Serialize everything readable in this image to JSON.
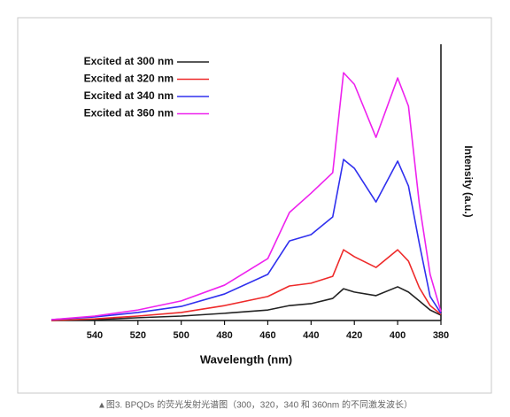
{
  "chart_data": {
    "type": "line",
    "caption": "▲图3. BPQDs 的荧光发射光谱图（300，320，340 和 360nm 的不同激发波长）",
    "x_label": "Wavelength (nm)",
    "y_label": "Intensity (a.u.)",
    "x": [
      560,
      540,
      520,
      500,
      480,
      460,
      450,
      440,
      430,
      425,
      420,
      410,
      400,
      395,
      390,
      385,
      380
    ],
    "xlim": [
      560,
      380
    ],
    "xticks": [
      540,
      520,
      500,
      480,
      460,
      440,
      420,
      400,
      380
    ],
    "ylim": [
      0,
      100
    ],
    "series": [
      {
        "name": "Excited at 300 nm",
        "color": "#222222",
        "values": [
          0,
          0.3,
          1,
          1.6,
          2.6,
          3.8,
          5.4,
          6.1,
          8,
          11.5,
          10.3,
          9,
          12.2,
          10.3,
          7.1,
          3.8,
          1.9
        ]
      },
      {
        "name": "Excited at 320 nm",
        "color": "#ee2a2a",
        "values": [
          0,
          0.6,
          1.6,
          2.9,
          5.4,
          8.7,
          12.5,
          13.5,
          16,
          25.6,
          23.1,
          19.2,
          25.6,
          21.5,
          11.9,
          5.4,
          2.2
        ]
      },
      {
        "name": "Excited at 340 nm",
        "color": "#3030ee",
        "values": [
          0.3,
          1.3,
          2.9,
          5.1,
          9.6,
          16.7,
          28.8,
          31.1,
          37.5,
          58.3,
          55.1,
          42.9,
          57.7,
          48.7,
          27.9,
          8.7,
          2.6
        ]
      },
      {
        "name": "Excited at 360 nm",
        "color": "#ee22ee",
        "values": [
          0.3,
          1.6,
          3.8,
          7.1,
          12.8,
          22.4,
          39.1,
          46.1,
          53.5,
          89.7,
          85.5,
          66.3,
          87.8,
          77.6,
          42.3,
          16.7,
          3.2
        ]
      }
    ]
  }
}
